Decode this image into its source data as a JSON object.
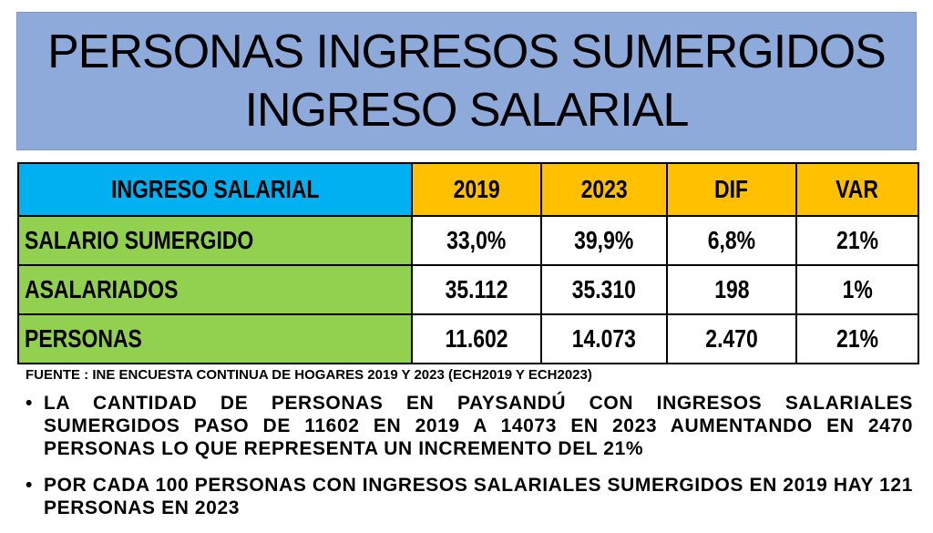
{
  "title": {
    "line1": "PERSONAS INGRESOS SUMERGIDOS",
    "line2": "INGRESO SALARIAL"
  },
  "table": {
    "header": [
      "INGRESO SALARIAL",
      "2019",
      "2023",
      "DIF",
      "VAR"
    ],
    "rows": [
      {
        "label": "SALARIO SUMERGIDO",
        "cells": [
          "33,0%",
          "39,9%",
          "6,8%",
          "21%"
        ]
      },
      {
        "label": "ASALARIADOS",
        "cells": [
          "35.112",
          "35.310",
          "198",
          "1%"
        ]
      },
      {
        "label": "PERSONAS",
        "cells": [
          "11.602",
          "14.073",
          "2.470",
          "21%"
        ]
      }
    ]
  },
  "source": "FUENTE : INE ENCUESTA CONTINUA DE HOGARES 2019 Y 2023 (ECH2019 Y ECH2023)",
  "bullets": [
    "LA CANTIDAD DE PERSONAS EN PAYSANDÚ CON INGRESOS SALARIALES SUMERGIDOS PASO DE 11602 EN 2019 A 14073 EN 2023 AUMENTANDO EN 2470 PERSONAS LO QUE REPRESENTA UN INCREMENTO DEL 21%",
    "POR CADA 100 PERSONAS CON INGRESOS SALARIALES SUMERGIDOS EN 2019 HAY 121 PERSONAS EN 2023"
  ],
  "colors": {
    "title_bg": "#8eaadb",
    "header_label_bg": "#00b0f0",
    "header_col_bg": "#ffc000",
    "row_label_bg": "#92d050"
  }
}
